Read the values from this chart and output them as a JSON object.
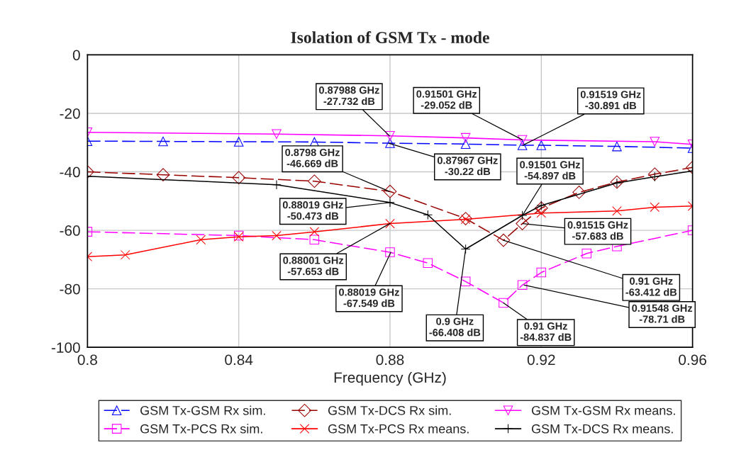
{
  "chart_data": {
    "type": "line",
    "title": "Isolation of GSM Tx - mode",
    "xlabel": "Frequency (GHz)",
    "xlim": [
      0.8,
      0.96
    ],
    "xticks": [
      0.8,
      0.84,
      0.88,
      0.92,
      0.96
    ],
    "ylim": [
      -100,
      0
    ],
    "yticks": [
      -100,
      -80,
      -60,
      -40,
      -20,
      0
    ],
    "grid": true,
    "legend": "bottom",
    "series": [
      {
        "name": "GSM Tx-GSM Rx sim.",
        "color": "#0000ff",
        "marker": "triangle",
        "line_style": "dashed",
        "x": [
          0.8,
          0.82,
          0.84,
          0.86,
          0.88,
          0.9,
          0.915,
          0.92,
          0.94,
          0.96
        ],
        "values": [
          -29.5,
          -29.6,
          -29.7,
          -29.8,
          -30.2,
          -30.5,
          -30.9,
          -30.9,
          -31.3,
          -31.9
        ]
      },
      {
        "name": "GSM Tx-PCS Rx sim.",
        "color": "#ff00ff",
        "marker": "square",
        "line_style": "dashed",
        "x": [
          0.8,
          0.84,
          0.86,
          0.88,
          0.89,
          0.9,
          0.91,
          0.915,
          0.92,
          0.932,
          0.94,
          0.96
        ],
        "values": [
          -60.5,
          -61.8,
          -63.2,
          -67.5,
          -71.2,
          -77.5,
          -84.8,
          -78.7,
          -74.4,
          -67.9,
          -65.5,
          -60
        ]
      },
      {
        "name": "GSM Tx-DCS Rx sim.",
        "color": "#990000",
        "marker": "diamond",
        "line_style": "dashed",
        "x": [
          0.8,
          0.82,
          0.84,
          0.86,
          0.88,
          0.9,
          0.91,
          0.915,
          0.92,
          0.93,
          0.94,
          0.95,
          0.96
        ],
        "values": [
          -40,
          -41,
          -42,
          -43.2,
          -46.7,
          -56,
          -63.4,
          -57.7,
          -52.4,
          -47,
          -43.5,
          -40.8,
          -38.5
        ]
      },
      {
        "name": "GSM Tx-PCS Rx means.",
        "color": "#ff0000",
        "marker": "cross",
        "line_style": "solid",
        "x": [
          0.8,
          0.81,
          0.83,
          0.84,
          0.85,
          0.86,
          0.88,
          0.9,
          0.92,
          0.94,
          0.95,
          0.96
        ],
        "values": [
          -69,
          -68.4,
          -63.2,
          -62.2,
          -61.8,
          -60.5,
          -57.7,
          -56.2,
          -54.1,
          -53.4,
          -52.1,
          -51.7
        ]
      },
      {
        "name": "GSM Tx-GSM Rx means.",
        "color": "#ff00ff",
        "marker": "triangle_down",
        "line_style": "solid",
        "x": [
          0.8,
          0.85,
          0.88,
          0.9,
          0.915,
          0.95,
          0.96
        ],
        "values": [
          -26.5,
          -27.1,
          -27.7,
          -28.4,
          -29.1,
          -29.7,
          -30.6
        ]
      },
      {
        "name": "GSM Tx-DCS Rx means.",
        "color": "#000000",
        "marker": "plus",
        "line_style": "solid",
        "x": [
          0.8,
          0.85,
          0.88,
          0.89,
          0.9,
          0.915,
          0.92,
          0.94,
          0.95,
          0.96
        ],
        "values": [
          -41.5,
          -44.4,
          -50.5,
          -54.7,
          -66.4,
          -54.9,
          -51.5,
          -43.8,
          -41.7,
          -39.7
        ]
      }
    ],
    "annotations": [
      {
        "text": "0.87988 GHz\n-27.732 dB",
        "x": 0.87988,
        "y": -27.732
      },
      {
        "text": "0.87967 GHz\n-30.22 dB",
        "x": 0.87967,
        "y": -30.22
      },
      {
        "text": "0.91501 GHz\n-29.052 dB",
        "x": 0.91501,
        "y": -29.052
      },
      {
        "text": "0.91519 GHz\n-30.891 dB",
        "x": 0.91519,
        "y": -30.891
      },
      {
        "text": "0.8798 GHz\n-46.669 dB",
        "x": 0.8798,
        "y": -46.669
      },
      {
        "text": "0.91501 GHz\n-54.897 dB",
        "x": 0.91501,
        "y": -54.897
      },
      {
        "text": "0.88019 GHz\n-50.473 dB",
        "x": 0.88019,
        "y": -50.473
      },
      {
        "text": "0.88001 GHz\n-57.653 dB",
        "x": 0.88001,
        "y": -57.653
      },
      {
        "text": "0.91515 GHz\n-57.683 dB",
        "x": 0.91515,
        "y": -57.683
      },
      {
        "text": "0.88019 GHz\n-67.549 dB",
        "x": 0.88019,
        "y": -67.549
      },
      {
        "text": "0.9 GHz\n-66.408 dB",
        "x": 0.9,
        "y": -66.408
      },
      {
        "text": "0.91 GHz\n-63.412 dB",
        "x": 0.91,
        "y": -63.412
      },
      {
        "text": "0.91548 GHz\n-78.71 dB",
        "x": 0.91548,
        "y": -78.71
      },
      {
        "text": "0.91 GHz\n-84.837 dB",
        "x": 0.91,
        "y": -84.837
      }
    ]
  }
}
